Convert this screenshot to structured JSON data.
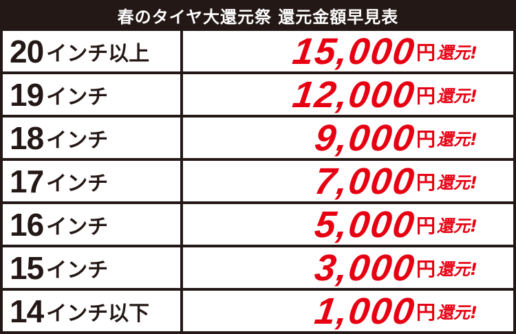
{
  "header": {
    "title": "春のタイヤ大還元祭 還元金額早見表"
  },
  "colors": {
    "background": "#231815",
    "amount": "#e60012",
    "cell": "#ffffff"
  },
  "rows": [
    {
      "size": "20",
      "unit": "インチ以上",
      "amount": "15,000",
      "yen": "円",
      "suffix": "還元!"
    },
    {
      "size": "19",
      "unit": "インチ",
      "amount": "12,000",
      "yen": "円",
      "suffix": "還元!"
    },
    {
      "size": "18",
      "unit": "インチ",
      "amount": "9,000",
      "yen": "円",
      "suffix": "還元!"
    },
    {
      "size": "17",
      "unit": "インチ",
      "amount": "7,000",
      "yen": "円",
      "suffix": "還元!"
    },
    {
      "size": "16",
      "unit": "インチ",
      "amount": "5,000",
      "yen": "円",
      "suffix": "還元!"
    },
    {
      "size": "15",
      "unit": "インチ",
      "amount": "3,000",
      "yen": "円",
      "suffix": "還元!"
    },
    {
      "size": "14",
      "unit": "インチ以下",
      "amount": "1,000",
      "yen": "円",
      "suffix": "還元!"
    }
  ]
}
